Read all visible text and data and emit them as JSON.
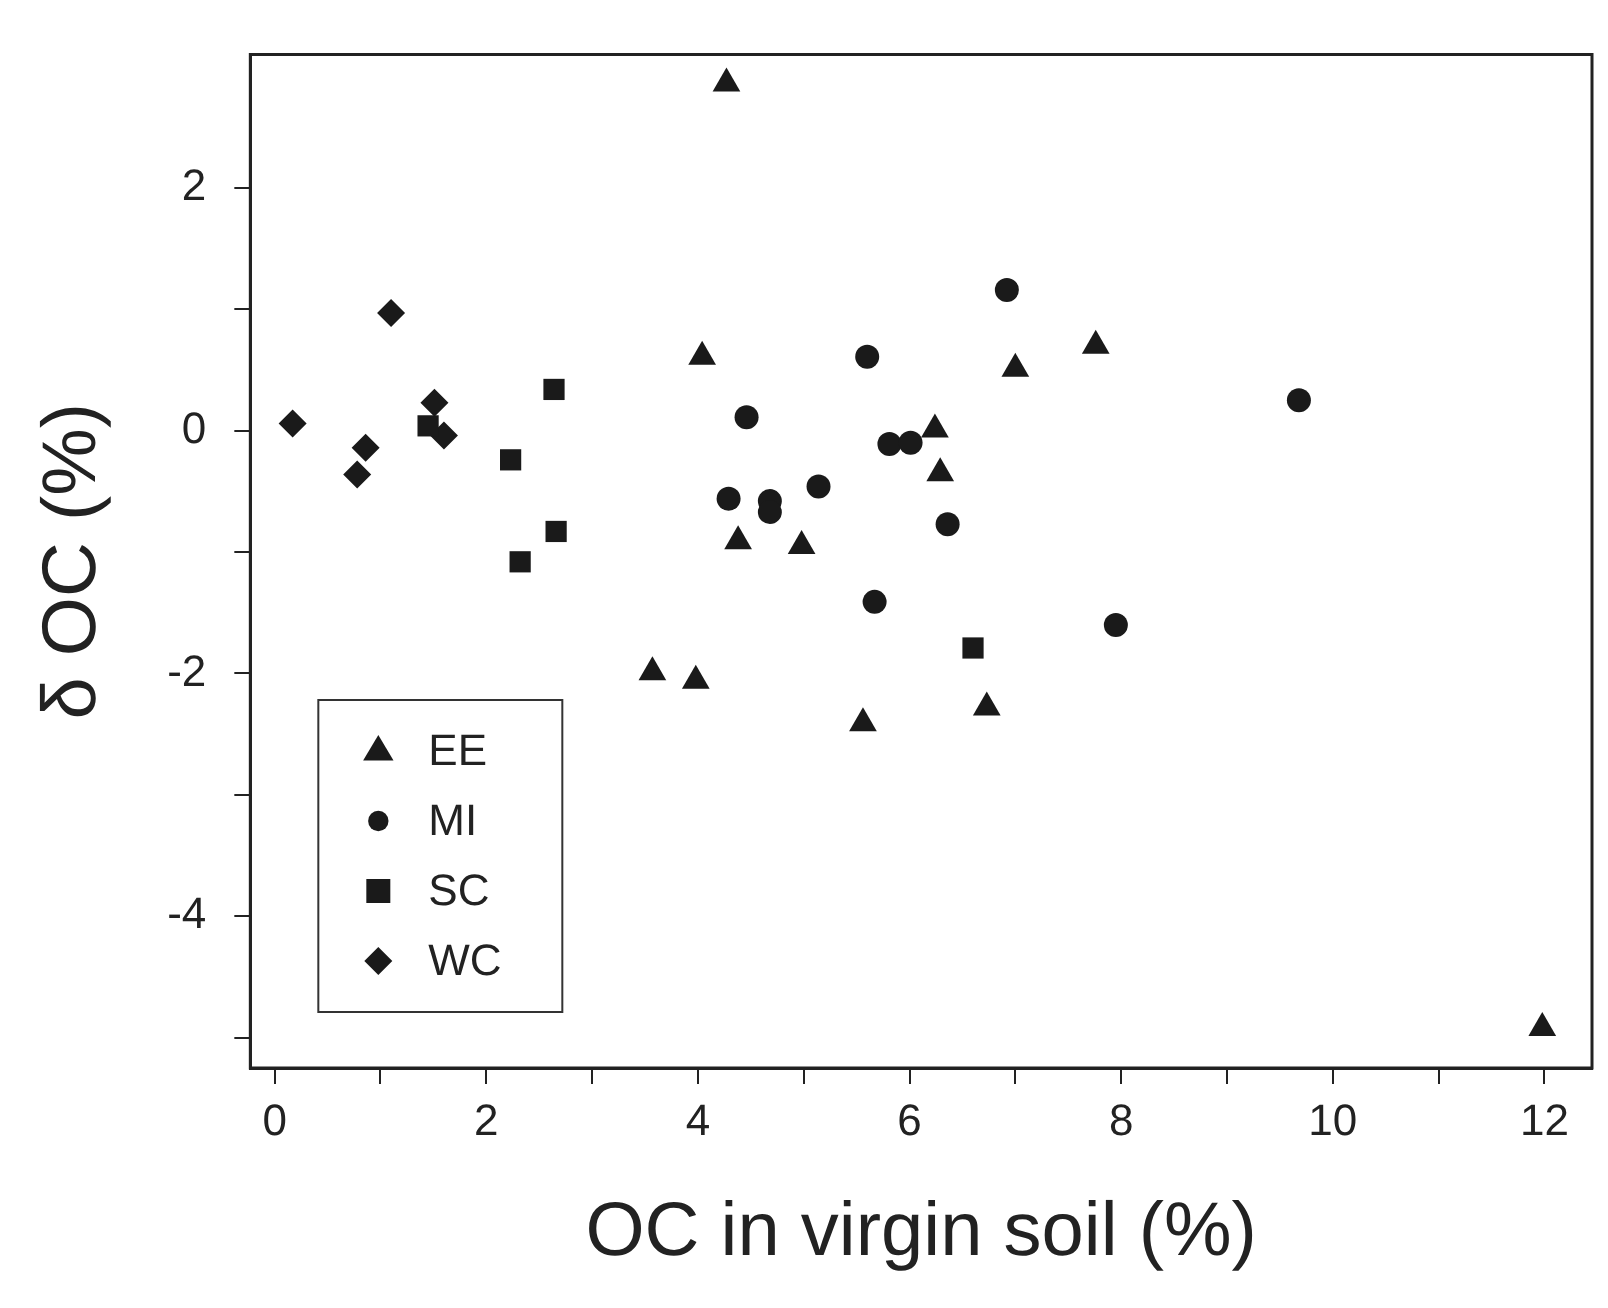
{
  "chart_data": {
    "type": "scatter",
    "xlabel": "OC in virgin soil (%)",
    "ylabel": "δ OC (%)",
    "xlim": [
      -0.23,
      12.45
    ],
    "ylim": [
      -5.25,
      3.1
    ],
    "xticks": [
      0,
      {
        "value": 1,
        "label": null
      },
      2,
      {
        "value": 3,
        "label": null
      },
      4,
      {
        "value": 5,
        "label": null
      },
      6,
      {
        "value": 7,
        "label": null
      },
      8,
      {
        "value": 9,
        "label": null
      },
      10,
      {
        "value": 11,
        "label": null
      },
      12
    ],
    "yticks": [
      {
        "value": -5,
        "label": null
      },
      -4,
      {
        "value": -3,
        "label": null
      },
      -2,
      {
        "value": -1,
        "label": null
      },
      0,
      {
        "value": 1,
        "label": null
      },
      2
    ],
    "grid": false,
    "legend": "bottom left",
    "series": [
      {
        "name": "EE",
        "color": "#1a1a1a",
        "marker": "triangle",
        "x": [
          4.27,
          4.04,
          4.38,
          4.98,
          6.24,
          6.29,
          7.0,
          7.76,
          3.57,
          3.98,
          5.56,
          6.73,
          11.98
        ],
        "values": [
          2.86,
          0.61,
          -0.91,
          -0.95,
          0.01,
          -0.35,
          0.51,
          0.7,
          -1.99,
          -2.06,
          -2.41,
          -2.28,
          -4.92
        ]
      },
      {
        "name": "MI",
        "color": "#1a1a1a",
        "marker": "circle",
        "x": [
          5.6,
          4.46,
          5.81,
          6.01,
          4.29,
          4.68,
          4.68,
          5.14,
          5.67,
          6.92,
          6.36,
          9.68,
          7.95
        ],
        "values": [
          0.61,
          0.11,
          -0.11,
          -0.1,
          -0.56,
          -0.58,
          -0.67,
          -0.46,
          -1.41,
          1.16,
          -0.77,
          0.25,
          -1.6
        ]
      },
      {
        "name": "SC",
        "color": "#1a1a1a",
        "marker": "square",
        "x": [
          1.45,
          2.64,
          2.23,
          2.66,
          2.32,
          6.6
        ],
        "values": [
          0.04,
          0.34,
          -0.24,
          -0.83,
          -1.08,
          -1.79
        ]
      },
      {
        "name": "WC",
        "color": "#1a1a1a",
        "marker": "diamond",
        "x": [
          0.17,
          1.1,
          1.51,
          1.6,
          0.86,
          0.78
        ],
        "values": [
          0.06,
          0.97,
          0.23,
          -0.04,
          -0.14,
          -0.36
        ]
      }
    ]
  }
}
